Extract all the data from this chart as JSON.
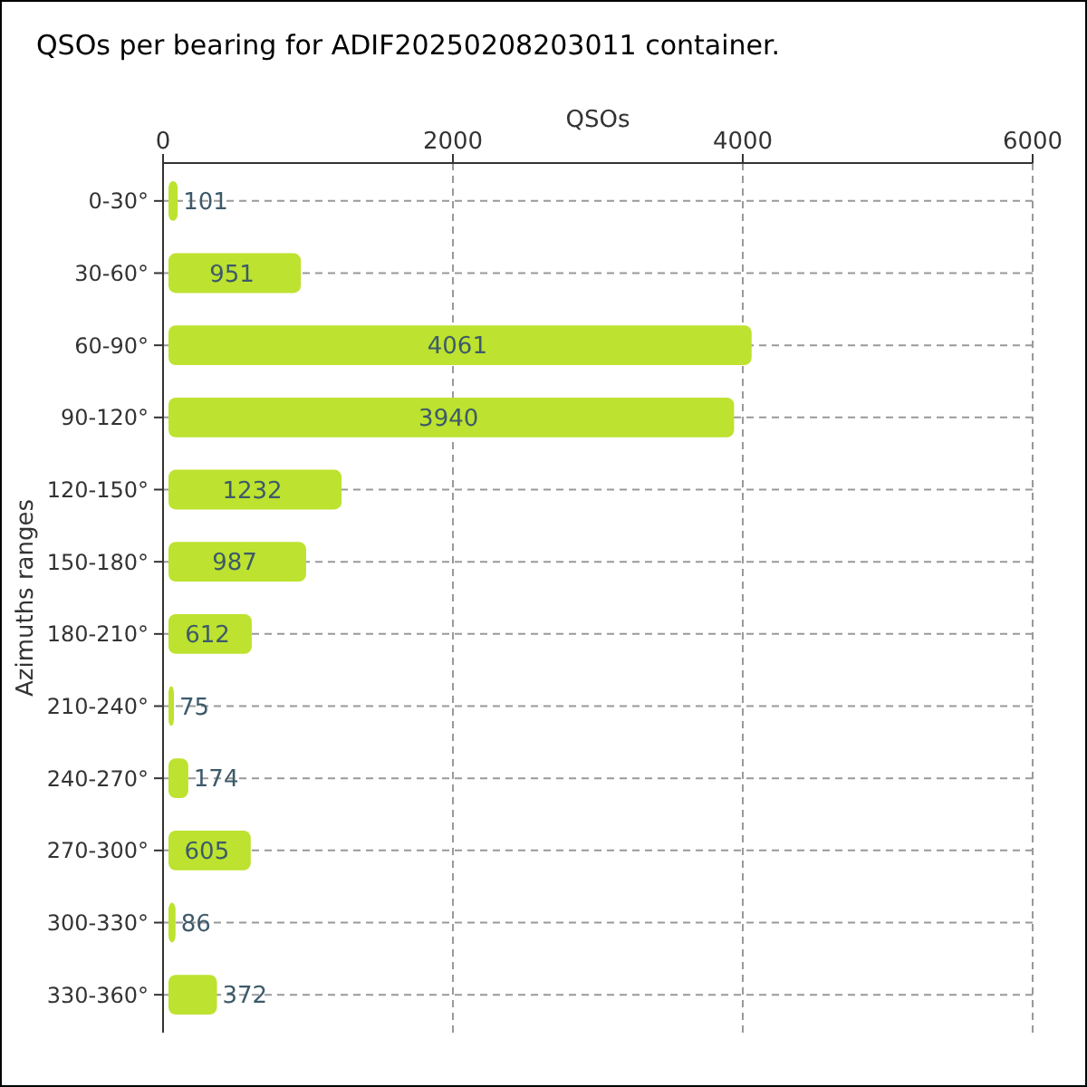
{
  "chart_data": {
    "type": "bar",
    "orientation": "horizontal",
    "title": "QSOs per bearing for ADIF20250208203011 container.",
    "xlabel": "QSOs",
    "ylabel": "Azimuths ranges",
    "categories": [
      "0-30°",
      "30-60°",
      "60-90°",
      "90-120°",
      "120-150°",
      "150-180°",
      "180-210°",
      "210-240°",
      "240-270°",
      "270-300°",
      "300-330°",
      "330-360°"
    ],
    "values": [
      101,
      951,
      4061,
      3940,
      1232,
      987,
      612,
      75,
      174,
      605,
      86,
      372
    ],
    "color": "#bde22f",
    "xlim": [
      0,
      6000
    ],
    "xticks": [
      0,
      2000,
      4000,
      6000
    ],
    "grid": true,
    "data_labels": true
  }
}
